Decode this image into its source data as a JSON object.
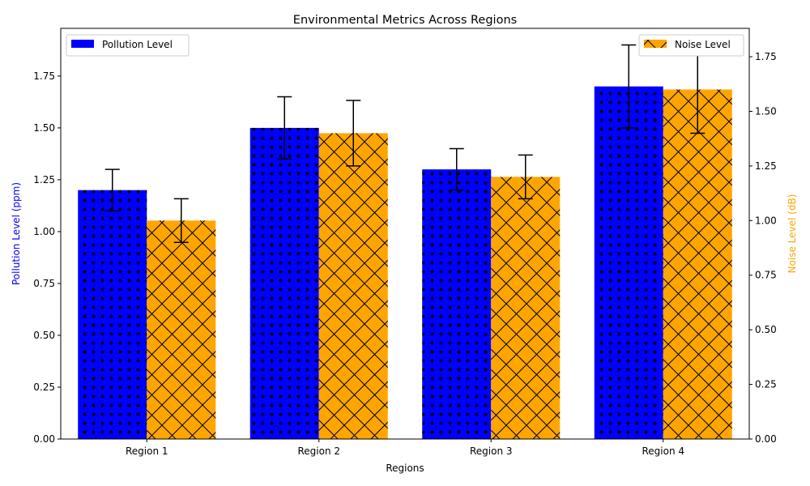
{
  "chart_data": {
    "type": "bar",
    "title": "Environmental Metrics Across Regions",
    "xlabel": "Regions",
    "categories": [
      "Region 1",
      "Region 2",
      "Region 3",
      "Region 4"
    ],
    "left_axis": {
      "label": "Pollution Level (ppm)",
      "color": "#0000ff",
      "ylim": [
        0,
        1.98
      ],
      "ticks": [
        "0.00",
        "0.25",
        "0.50",
        "0.75",
        "1.00",
        "1.25",
        "1.50",
        "1.75"
      ]
    },
    "right_axis": {
      "label": "Noise Level (dB)",
      "color": "#ffa500",
      "ylim": [
        0,
        1.88
      ],
      "ticks": [
        "0.00",
        "0.25",
        "0.50",
        "0.75",
        "1.00",
        "1.25",
        "1.50",
        "1.75"
      ]
    },
    "series": [
      {
        "name": "Pollution Level",
        "axis": "left",
        "color": "#0000ff",
        "hatch": "dots",
        "values": [
          1.2,
          1.5,
          1.3,
          1.7
        ],
        "errors": [
          0.1,
          0.15,
          0.1,
          0.2
        ]
      },
      {
        "name": "Noise Level",
        "axis": "right",
        "color": "#ffa500",
        "hatch": "crosshatch",
        "values": [
          1.0,
          1.4,
          1.2,
          1.6
        ],
        "errors": [
          0.1,
          0.15,
          0.1,
          0.2
        ]
      }
    ],
    "legends": [
      "top-left",
      "top-right"
    ],
    "grid": false
  }
}
